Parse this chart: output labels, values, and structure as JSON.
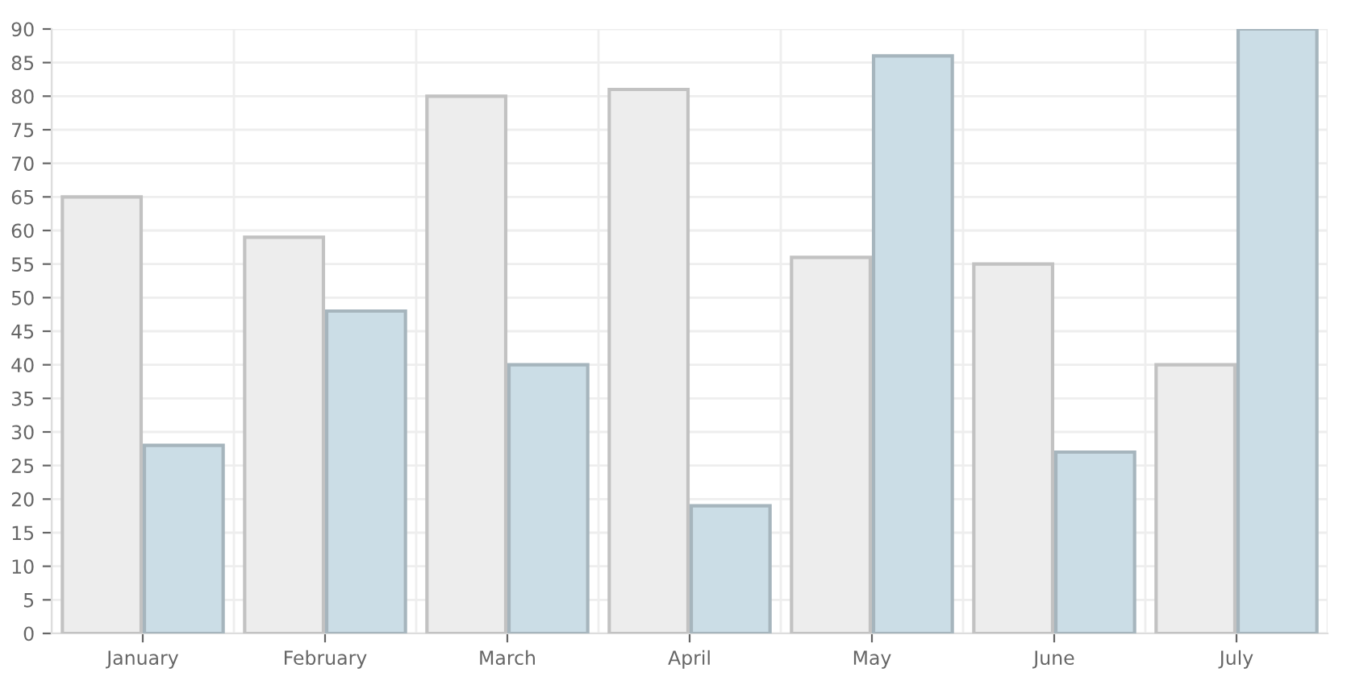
{
  "chart_data": {
    "type": "bar",
    "categories": [
      "January",
      "February",
      "March",
      "April",
      "May",
      "June",
      "July"
    ],
    "series": [
      {
        "color": "#ededed",
        "values": [
          65,
          59,
          80,
          81,
          56,
          55,
          40
        ]
      },
      {
        "color": "#cbdde6",
        "values": [
          28,
          48,
          40,
          19,
          86,
          27,
          90
        ]
      }
    ],
    "ylim": [
      0,
      90
    ],
    "yticks": [
      0,
      5,
      10,
      15,
      20,
      25,
      30,
      35,
      40,
      45,
      50,
      55,
      60,
      65,
      70,
      75,
      80,
      85,
      90
    ],
    "grid": true,
    "legend": false
  }
}
